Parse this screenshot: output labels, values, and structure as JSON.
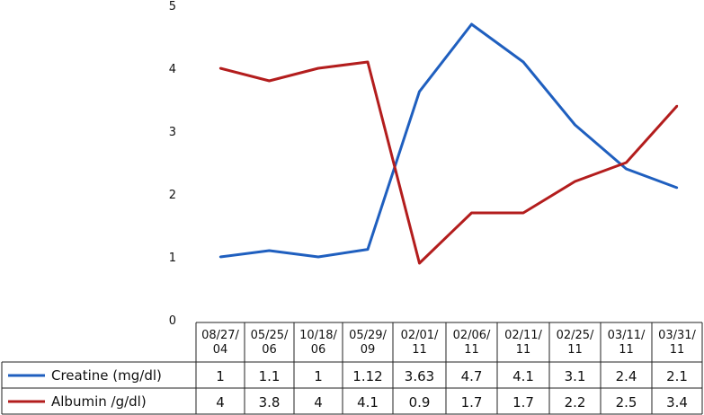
{
  "chart_data": {
    "type": "line",
    "categories": [
      [
        "08/27/",
        "04"
      ],
      [
        "05/25/",
        "06"
      ],
      [
        "10/18/",
        "06"
      ],
      [
        "05/29/",
        "09"
      ],
      [
        "02/01/",
        "11"
      ],
      [
        "02/06/",
        "11"
      ],
      [
        "02/11/",
        "11"
      ],
      [
        "02/25/",
        "11"
      ],
      [
        "03/11/",
        "11"
      ],
      [
        "03/31/",
        "11"
      ]
    ],
    "series": [
      {
        "name": "Creatine (mg/dl)",
        "color": "#1f5fbf",
        "values": [
          1,
          1.1,
          1,
          1.12,
          3.63,
          4.7,
          4.1,
          3.1,
          2.4,
          2.1
        ],
        "table_values": [
          "1",
          "1.1",
          "1",
          "1.12",
          "3.63",
          "4.7",
          "4.1",
          "3.1",
          "2.4",
          "2.1"
        ]
      },
      {
        "name": "Albumin /g/dl)",
        "color": "#b31d1d",
        "values": [
          4,
          3.8,
          4,
          4.1,
          0.9,
          1.7,
          1.7,
          2.2,
          2.5,
          3.4
        ],
        "table_values": [
          "4",
          "3.8",
          "4",
          "4.1",
          "0.9",
          "1.7",
          "1.7",
          "2.2",
          "2.5",
          "3.4"
        ]
      }
    ],
    "ylim": [
      0,
      5
    ],
    "yticks": [
      "0",
      "1",
      "2",
      "3",
      "4",
      "5"
    ],
    "grid": false,
    "legend": "data table below chart"
  }
}
